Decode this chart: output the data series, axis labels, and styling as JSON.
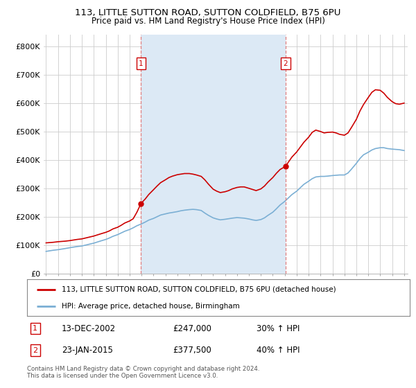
{
  "title": "113, LITTLE SUTTON ROAD, SUTTON COLDFIELD, B75 6PU",
  "subtitle": "Price paid vs. HM Land Registry's House Price Index (HPI)",
  "legend_line1": "113, LITTLE SUTTON ROAD, SUTTON COLDFIELD, B75 6PU (detached house)",
  "legend_line2": "HPI: Average price, detached house, Birmingham",
  "annotation1_label": "1",
  "annotation1_date": "13-DEC-2002",
  "annotation1_price": "£247,000",
  "annotation1_hpi": "30% ↑ HPI",
  "annotation2_label": "2",
  "annotation2_date": "23-JAN-2015",
  "annotation2_price": "£377,500",
  "annotation2_hpi": "40% ↑ HPI",
  "footnote": "Contains HM Land Registry data © Crown copyright and database right 2024.\nThis data is licensed under the Open Government Licence v3.0.",
  "red_color": "#cc0000",
  "blue_color": "#7bafd4",
  "blue_fill_color": "#dce9f5",
  "dashed_color": "#e08080",
  "background_color": "#ffffff",
  "grid_color": "#cccccc",
  "ylim_min": 0,
  "ylim_max": 840000,
  "yticks": [
    0,
    100000,
    200000,
    300000,
    400000,
    500000,
    600000,
    700000,
    800000
  ],
  "ytick_labels": [
    "£0",
    "£100K",
    "£200K",
    "£300K",
    "£400K",
    "£500K",
    "£600K",
    "£700K",
    "£800K"
  ],
  "red_x": [
    1995.0,
    1995.3,
    1995.6,
    1996.0,
    1996.3,
    1996.6,
    1997.0,
    1997.3,
    1997.6,
    1998.0,
    1998.3,
    1998.6,
    1999.0,
    1999.3,
    1999.6,
    2000.0,
    2000.3,
    2000.6,
    2001.0,
    2001.3,
    2001.6,
    2002.0,
    2002.3,
    2002.6,
    2002.96,
    2003.3,
    2003.6,
    2004.0,
    2004.3,
    2004.6,
    2005.0,
    2005.3,
    2005.6,
    2006.0,
    2006.3,
    2006.6,
    2007.0,
    2007.3,
    2007.6,
    2008.0,
    2008.3,
    2008.6,
    2009.0,
    2009.3,
    2009.6,
    2010.0,
    2010.3,
    2010.6,
    2011.0,
    2011.3,
    2011.6,
    2012.0,
    2012.3,
    2012.6,
    2013.0,
    2013.3,
    2013.6,
    2014.0,
    2014.3,
    2014.6,
    2015.07,
    2015.3,
    2015.6,
    2016.0,
    2016.3,
    2016.6,
    2017.0,
    2017.3,
    2017.6,
    2018.0,
    2018.3,
    2018.6,
    2019.0,
    2019.3,
    2019.6,
    2020.0,
    2020.3,
    2020.6,
    2021.0,
    2021.3,
    2021.6,
    2022.0,
    2022.3,
    2022.6,
    2023.0,
    2023.3,
    2023.6,
    2024.0,
    2024.3,
    2024.6,
    2025.0
  ],
  "red_y": [
    108000,
    109000,
    110000,
    112000,
    113000,
    114000,
    116000,
    118000,
    120000,
    122000,
    125000,
    128000,
    132000,
    136000,
    140000,
    145000,
    150000,
    157000,
    163000,
    170000,
    178000,
    185000,
    193000,
    215000,
    247000,
    262000,
    278000,
    295000,
    308000,
    320000,
    330000,
    338000,
    343000,
    348000,
    350000,
    352000,
    352000,
    350000,
    347000,
    342000,
    330000,
    315000,
    297000,
    290000,
    285000,
    288000,
    292000,
    298000,
    303000,
    305000,
    305000,
    300000,
    296000,
    292000,
    298000,
    308000,
    322000,
    338000,
    353000,
    366000,
    377500,
    392000,
    410000,
    428000,
    445000,
    462000,
    480000,
    497000,
    505000,
    500000,
    495000,
    497000,
    498000,
    495000,
    490000,
    487000,
    495000,
    515000,
    543000,
    572000,
    595000,
    620000,
    638000,
    647000,
    645000,
    635000,
    620000,
    605000,
    598000,
    596000,
    600000
  ],
  "blue_x": [
    1995.0,
    1995.3,
    1995.6,
    1996.0,
    1996.3,
    1996.6,
    1997.0,
    1997.3,
    1997.6,
    1998.0,
    1998.3,
    1998.6,
    1999.0,
    1999.3,
    1999.6,
    2000.0,
    2000.3,
    2000.6,
    2001.0,
    2001.3,
    2001.6,
    2002.0,
    2002.3,
    2002.6,
    2003.0,
    2003.3,
    2003.6,
    2004.0,
    2004.3,
    2004.6,
    2005.0,
    2005.3,
    2005.6,
    2006.0,
    2006.3,
    2006.6,
    2007.0,
    2007.3,
    2007.6,
    2008.0,
    2008.3,
    2008.6,
    2009.0,
    2009.3,
    2009.6,
    2010.0,
    2010.3,
    2010.6,
    2011.0,
    2011.3,
    2011.6,
    2012.0,
    2012.3,
    2012.6,
    2013.0,
    2013.3,
    2013.6,
    2014.0,
    2014.3,
    2014.6,
    2015.0,
    2015.3,
    2015.6,
    2016.0,
    2016.3,
    2016.6,
    2017.0,
    2017.3,
    2017.6,
    2018.0,
    2018.3,
    2018.6,
    2019.0,
    2019.3,
    2019.6,
    2020.0,
    2020.3,
    2020.6,
    2021.0,
    2021.3,
    2021.6,
    2022.0,
    2022.3,
    2022.6,
    2023.0,
    2023.3,
    2023.6,
    2024.0,
    2024.3,
    2024.6,
    2025.0
  ],
  "blue_y": [
    78000,
    80000,
    82000,
    84000,
    86000,
    88000,
    91000,
    93000,
    95000,
    97000,
    100000,
    103000,
    107000,
    111000,
    115000,
    120000,
    125000,
    131000,
    137000,
    143000,
    149000,
    155000,
    161000,
    168000,
    175000,
    181000,
    188000,
    194000,
    200000,
    206000,
    210000,
    213000,
    215000,
    218000,
    221000,
    223000,
    225000,
    226000,
    225000,
    222000,
    213000,
    205000,
    196000,
    192000,
    189000,
    191000,
    193000,
    195000,
    197000,
    196000,
    195000,
    192000,
    189000,
    187000,
    190000,
    196000,
    205000,
    216000,
    228000,
    241000,
    254000,
    266000,
    278000,
    290000,
    302000,
    314000,
    325000,
    334000,
    340000,
    342000,
    342000,
    343000,
    345000,
    346000,
    347000,
    347000,
    354000,
    368000,
    388000,
    405000,
    418000,
    427000,
    435000,
    440000,
    443000,
    443000,
    440000,
    438000,
    437000,
    436000,
    433000
  ],
  "sale1_x": 2002.96,
  "sale1_y": 247000,
  "sale2_x": 2015.07,
  "sale2_y": 377500,
  "xmin": 1994.8,
  "xmax": 2025.3,
  "xticks": [
    1995,
    1996,
    1997,
    1998,
    1999,
    2000,
    2001,
    2002,
    2003,
    2004,
    2005,
    2006,
    2007,
    2008,
    2009,
    2010,
    2011,
    2012,
    2013,
    2014,
    2015,
    2016,
    2017,
    2018,
    2019,
    2020,
    2021,
    2022,
    2023,
    2024,
    2025
  ]
}
